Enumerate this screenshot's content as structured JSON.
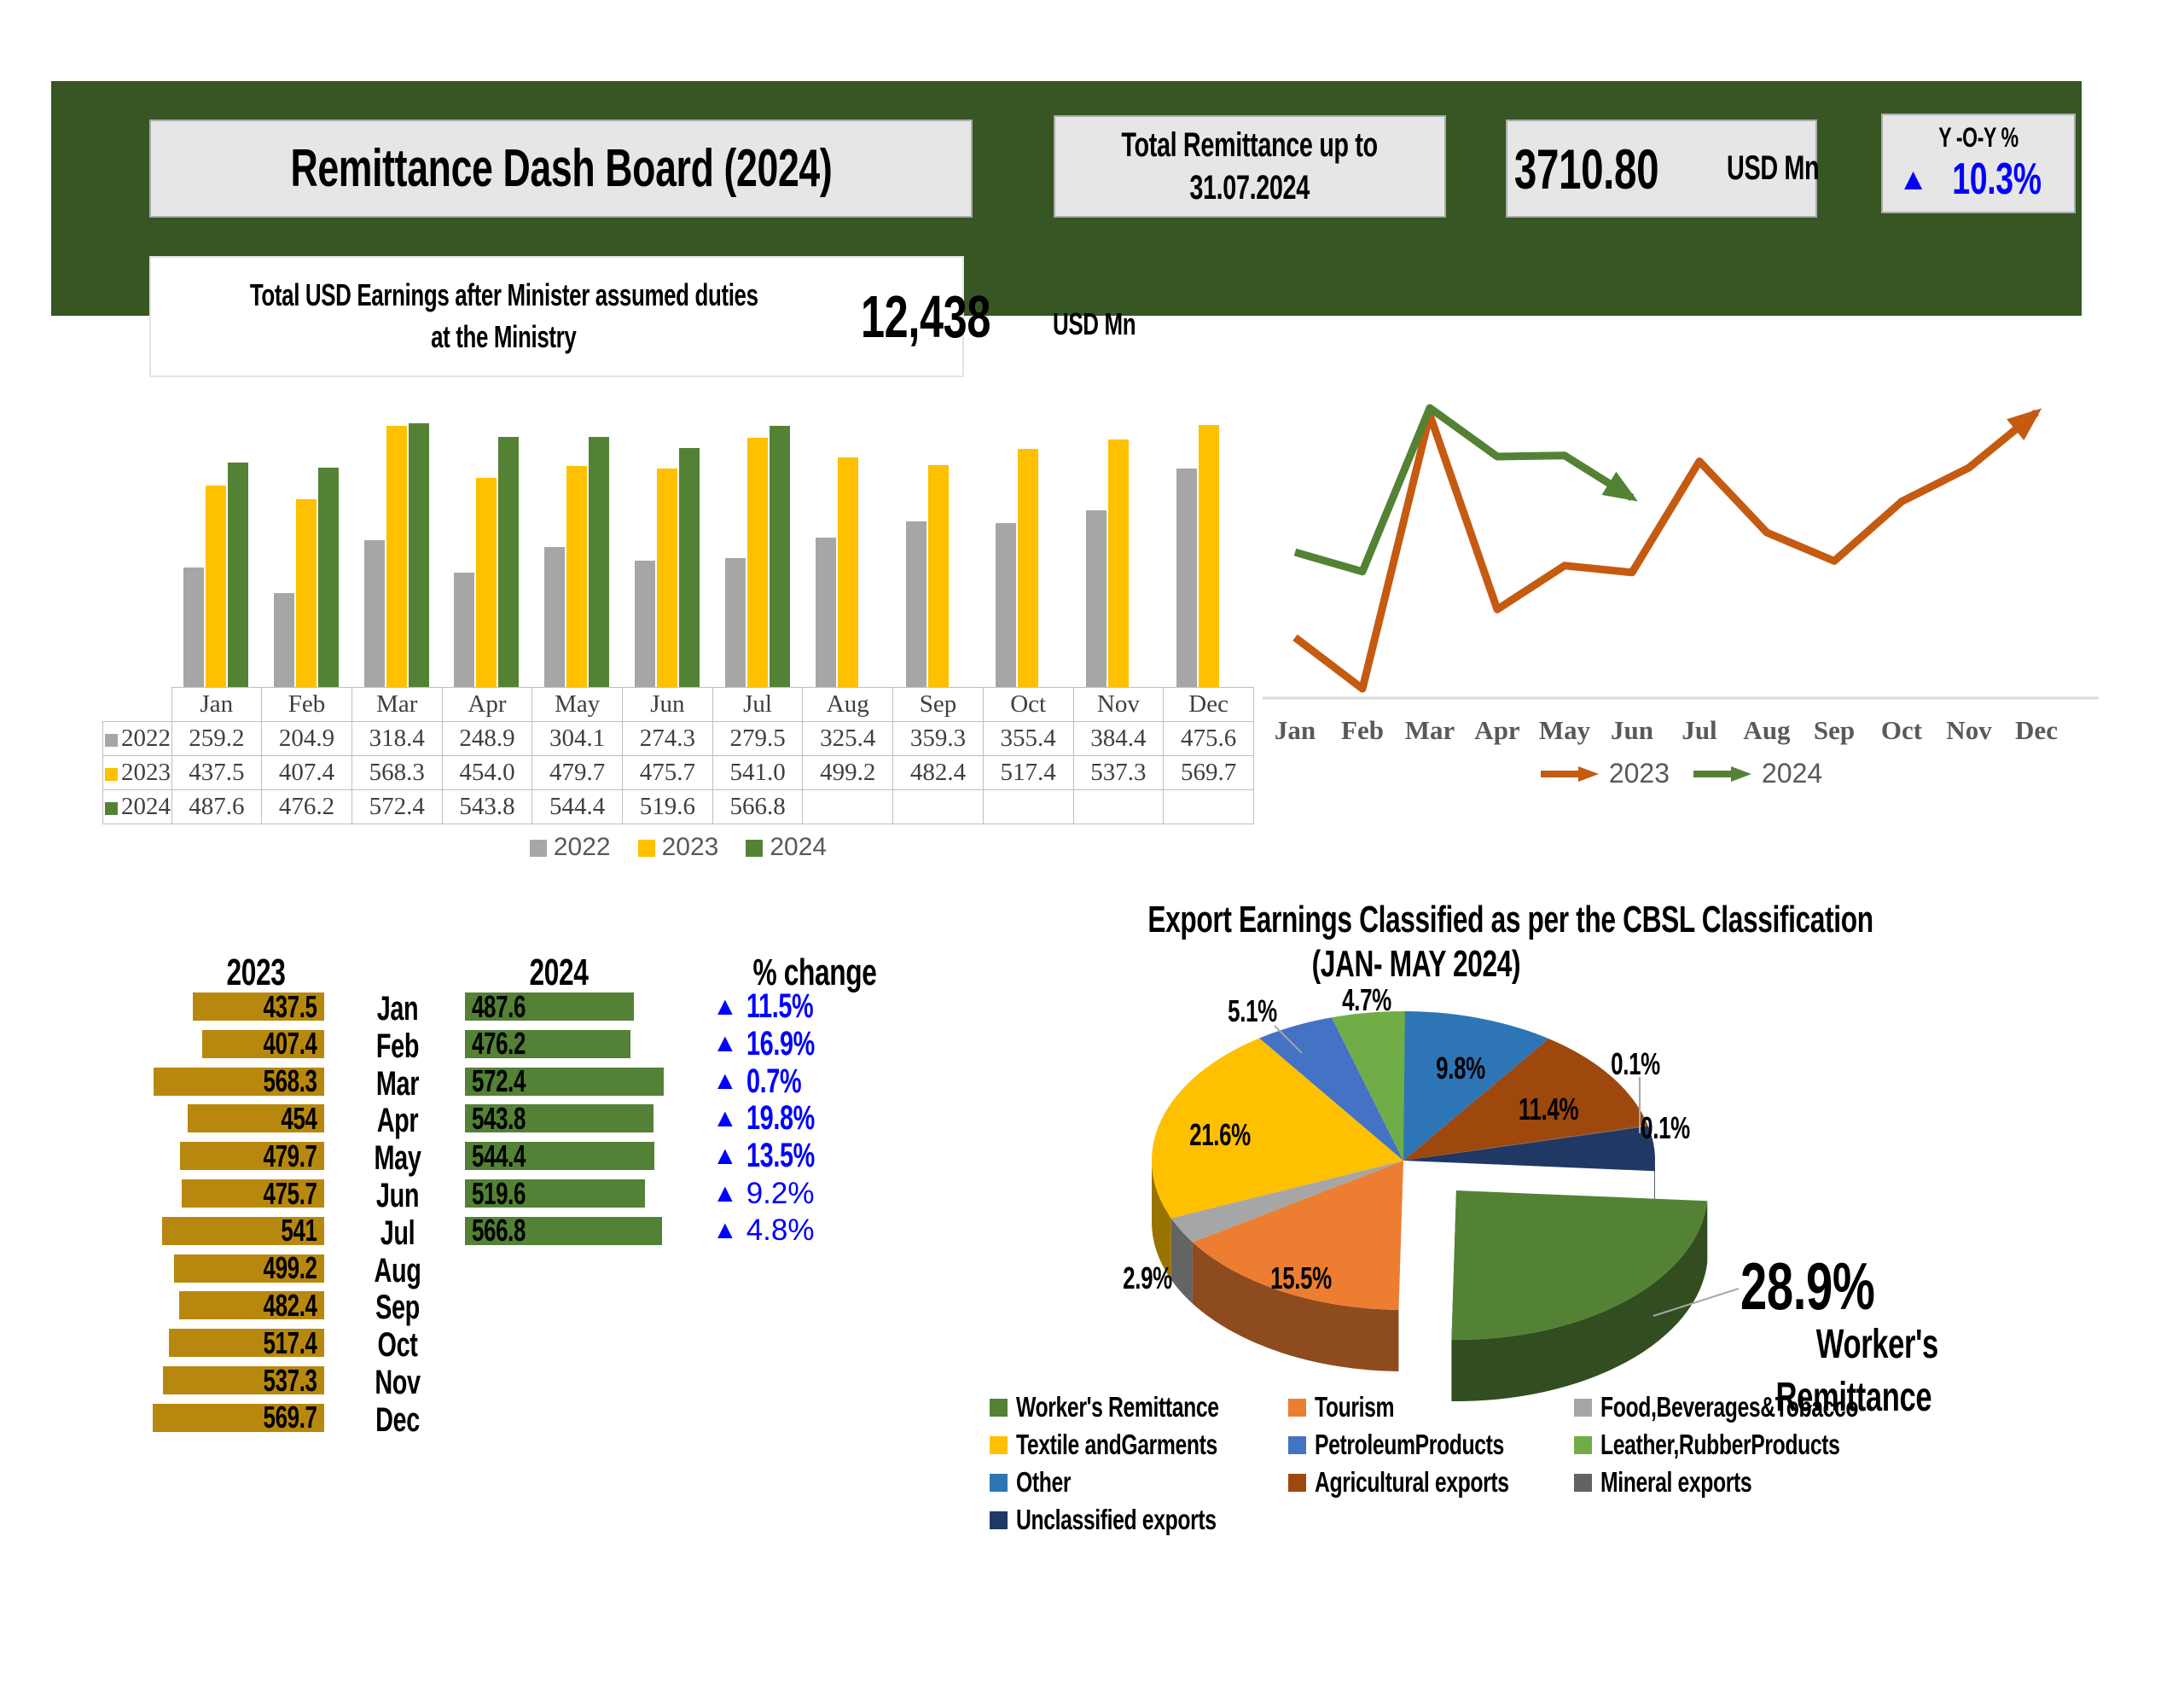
{
  "header": {
    "title": "Remittance Dash Board (2024)",
    "total_remittance_label_line1": "Total Remittance up to",
    "total_remittance_label_line2": "31.07.2024",
    "total_remittance_value": "3710.80",
    "total_remittance_unit": "USD Mn",
    "yoy_label": "Y -O-Y %",
    "yoy_arrow": "▲",
    "yoy_value": "10.3%",
    "earnings_label_line1": "Total USD Earnings after Minister assumed duties",
    "earnings_label_line2": "at the Ministry",
    "earnings_value": "12,438",
    "earnings_unit": "USD Mn"
  },
  "colors": {
    "band_green": "#375623",
    "accent_blue": "#0000FF",
    "gray_2022": "#A6A6A6",
    "yellow_2023": "#FFC000",
    "green_2024": "#548235",
    "line_orange": "#C55A11",
    "gold_bar": "#B8880E",
    "table_border": "#BFBFBF"
  },
  "chart_data": [
    {
      "id": "monthly_columns_with_table",
      "type": "bar",
      "categories": [
        "Jan",
        "Feb",
        "Mar",
        "Apr",
        "May",
        "Jun",
        "Jul",
        "Aug",
        "Sep",
        "Oct",
        "Nov",
        "Dec"
      ],
      "series": [
        {
          "name": "2022",
          "color": "#A6A6A6",
          "values": [
            "259.2",
            "204.9",
            "318.4",
            "248.9",
            "304.1",
            "274.3",
            "279.5",
            "325.4",
            "359.3",
            "355.4",
            "384.4",
            "475.6"
          ]
        },
        {
          "name": "2023",
          "color": "#FFC000",
          "values": [
            "437.5",
            "407.4",
            "568.3",
            "454.0",
            "479.7",
            "475.7",
            "541.0",
            "499.2",
            "482.4",
            "517.4",
            "537.3",
            "569.7"
          ]
        },
        {
          "name": "2024",
          "color": "#548235",
          "values": [
            "487.6",
            "476.2",
            "572.4",
            "543.8",
            "544.4",
            "519.6",
            "566.8",
            "",
            "",
            "",
            "",
            ""
          ]
        }
      ],
      "ylim": [
        0,
        640
      ],
      "grid": false,
      "legend_position": "bottom",
      "table_display": true
    },
    {
      "id": "monthly_lines",
      "type": "line",
      "x": [
        "Jan",
        "Feb",
        "Mar",
        "Apr",
        "May",
        "Jun",
        "Jul",
        "Aug",
        "Sep",
        "Oct",
        "Nov",
        "Dec"
      ],
      "series": [
        {
          "name": "2023",
          "color": "#C55A11",
          "values": [
            437.5,
            407.4,
            568.3,
            454.0,
            479.7,
            475.7,
            541.0,
            499.2,
            482.4,
            517.4,
            537.3,
            569.7
          ]
        },
        {
          "name": "2024",
          "color": "#548235",
          "values": [
            487.6,
            476.2,
            572.4,
            543.8,
            544.4,
            519.6
          ]
        }
      ],
      "ylim": [
        395,
        600
      ],
      "grid": false,
      "legend_position": "bottom",
      "arrow_ends": true
    },
    {
      "id": "yoy_comparison",
      "type": "bar",
      "orientation": "horizontal",
      "left_header": "2023",
      "right_header": "2024",
      "pct_header": "% change",
      "up_arrow": "▲",
      "categories": [
        "Jan",
        "Feb",
        "Mar",
        "Apr",
        "May",
        "Jun",
        "Jul",
        "Aug",
        "Sep",
        "Oct",
        "Nov",
        "Dec"
      ],
      "series": [
        {
          "name": "2023",
          "color": "#B8880E",
          "values": [
            "437.5",
            "407.4",
            "568.3",
            "454",
            "479.7",
            "475.7",
            "541",
            "499.2",
            "482.4",
            "517.4",
            "537.3",
            "569.7"
          ]
        },
        {
          "name": "2024",
          "color": "#538135",
          "values": [
            "487.6",
            "476.2",
            "572.4",
            "543.8",
            "544.4",
            "519.6",
            "566.8"
          ]
        }
      ],
      "pct_change": [
        "11.5%",
        "16.9%",
        "0.7%",
        "19.8%",
        "13.5%",
        "9.2%",
        "4.8%"
      ],
      "xlim": [
        0,
        580
      ]
    },
    {
      "id": "export_pie",
      "type": "pie",
      "title": "Export Earnings Classified as per the CBSL Classification",
      "subtitle": "(JAN- MAY 2024)",
      "slices": [
        {
          "label": "Other",
          "value": 9.8,
          "color": "#2E75B6"
        },
        {
          "label": "Agricultural exports",
          "value": 11.4,
          "color": "#9E480E"
        },
        {
          "label": "Mineral exports",
          "value": 0.1,
          "color": "#636363"
        },
        {
          "label": "Unclassified exports",
          "value": 0.1,
          "color": "#1F3864"
        },
        {
          "label": "Worker's Remittance",
          "value": 28.9,
          "color": "#548235",
          "exploded": true
        },
        {
          "label": "Tourism",
          "value": 15.5,
          "color": "#ED7D31"
        },
        {
          "label": "Food,Beverages&Tobacco",
          "value": 2.9,
          "color": "#A6A6A6"
        },
        {
          "label": "Textile andGarments",
          "value": 21.6,
          "color": "#FFC000"
        },
        {
          "label": "PetroleumProducts",
          "value": 5.1,
          "color": "#4472C4"
        },
        {
          "label": "Leather,RubberProducts",
          "value": 4.7,
          "color": "#70AD47"
        }
      ],
      "callout": {
        "pct": "28.9%",
        "line1": "Worker's",
        "line2": "Remittance"
      },
      "legend_order": [
        "Worker's Remittance",
        "Tourism",
        "Food,Beverages&Tobacco",
        "Textile andGarments",
        "PetroleumProducts",
        "Leather,RubberProducts",
        "Other",
        "Agricultural exports",
        "Mineral exports",
        "Unclassified exports"
      ],
      "legend_position": "bottom"
    }
  ]
}
